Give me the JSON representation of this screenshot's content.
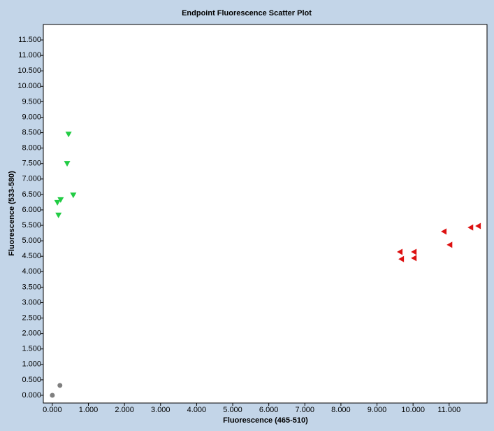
{
  "chart_data": {
    "type": "scatter",
    "title": "Endpoint Fluorescence Scatter Plot",
    "xlabel": "Fluorescence (465-510)",
    "ylabel": "Fluorescence (533-580)",
    "xlim": [
      -0.25,
      12.05
    ],
    "ylim": [
      -0.25,
      12.0
    ],
    "xticks": [
      {
        "value": 0,
        "label": "0.000"
      },
      {
        "value": 1,
        "label": "1.000"
      },
      {
        "value": 2,
        "label": "2.000"
      },
      {
        "value": 3,
        "label": "3.000"
      },
      {
        "value": 4,
        "label": "4.000"
      },
      {
        "value": 5,
        "label": "5.000"
      },
      {
        "value": 6,
        "label": "6.000"
      },
      {
        "value": 7,
        "label": "7.000"
      },
      {
        "value": 8,
        "label": "8.000"
      },
      {
        "value": 9,
        "label": "9.000"
      },
      {
        "value": 10,
        "label": "10.000"
      },
      {
        "value": 11,
        "label": "11.000"
      }
    ],
    "yticks": [
      {
        "value": 0,
        "label": "0.000"
      },
      {
        "value": 0.5,
        "label": "0.500"
      },
      {
        "value": 1,
        "label": "1.000"
      },
      {
        "value": 1.5,
        "label": "1.500"
      },
      {
        "value": 2,
        "label": "2.000"
      },
      {
        "value": 2.5,
        "label": "2.500"
      },
      {
        "value": 3,
        "label": "3.000"
      },
      {
        "value": 3.5,
        "label": "3.500"
      },
      {
        "value": 4,
        "label": "4.000"
      },
      {
        "value": 4.5,
        "label": "4.500"
      },
      {
        "value": 5,
        "label": "5.000"
      },
      {
        "value": 5.5,
        "label": "5.500"
      },
      {
        "value": 6,
        "label": "6.000"
      },
      {
        "value": 6.5,
        "label": "6.500"
      },
      {
        "value": 7,
        "label": "7.000"
      },
      {
        "value": 7.5,
        "label": "7.500"
      },
      {
        "value": 8,
        "label": "8.000"
      },
      {
        "value": 8.5,
        "label": "8.500"
      },
      {
        "value": 9,
        "label": "9.000"
      },
      {
        "value": 9.5,
        "label": "9.500"
      },
      {
        "value": 10,
        "label": "10.000"
      },
      {
        "value": 10.5,
        "label": "10.500"
      },
      {
        "value": 11,
        "label": "11.000"
      },
      {
        "value": 11.5,
        "label": "11.500"
      }
    ],
    "grid": false,
    "series": [
      {
        "color": "#7f7f7f",
        "marker": "circle",
        "x": [
          0.0,
          0.21
        ],
        "values": [
          0.0,
          0.32
        ]
      },
      {
        "color": "#22cc44",
        "marker": "triangle-down",
        "x": [
          0.45,
          0.41,
          0.58,
          0.23,
          0.14,
          0.17
        ],
        "values": [
          8.44,
          7.49,
          6.47,
          6.32,
          6.23,
          5.82
        ]
      },
      {
        "color": "#dd1111",
        "marker": "triangle-left",
        "x": [
          9.63,
          9.67,
          10.02,
          10.02,
          10.85,
          11.01,
          11.59,
          11.8
        ],
        "values": [
          4.64,
          4.41,
          4.64,
          4.44,
          5.3,
          4.87,
          5.43,
          5.48
        ]
      }
    ]
  }
}
